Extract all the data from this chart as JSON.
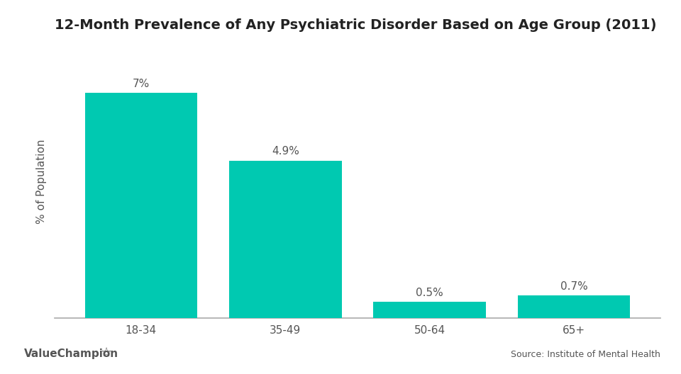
{
  "title": "12-Month Prevalence of Any Psychiatric Disorder Based on Age Group (2011)",
  "categories": [
    "18-34",
    "35-49",
    "50-64",
    "65+"
  ],
  "values": [
    7.0,
    4.9,
    0.5,
    0.7
  ],
  "labels": [
    "7%",
    "4.9%",
    "0.5%",
    "0.7%"
  ],
  "bar_color": "#00C9B1",
  "ylabel": "% of Population",
  "ylim": [
    0,
    8.5
  ],
  "background_color": "#ffffff",
  "title_fontsize": 14,
  "label_fontsize": 11,
  "tick_fontsize": 11,
  "ylabel_fontsize": 11,
  "source_text": "Source: Institute of Mental Health",
  "brand_text": "ValueChampion",
  "source_fontsize": 9,
  "brand_fontsize": 11,
  "bar_width": 0.78,
  "text_color": "#555555",
  "title_color": "#222222"
}
